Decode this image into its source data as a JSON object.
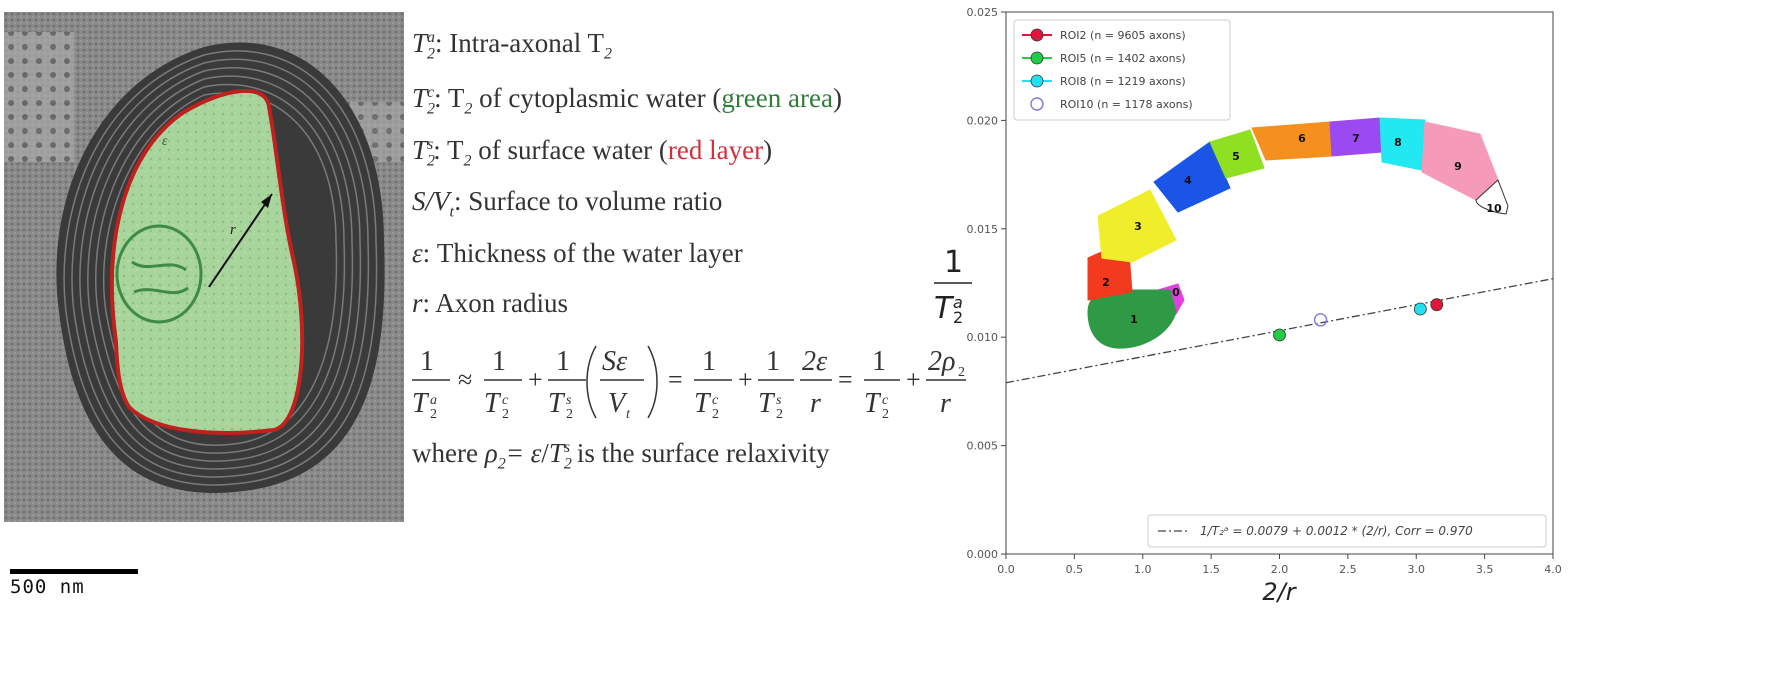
{
  "scale_bar": {
    "label": "500 nm"
  },
  "micrograph": {
    "radius_label": "r",
    "layer_label": "ε"
  },
  "definitions": {
    "t2a": {
      "sym": "T",
      "sub": "2",
      "sup": "a",
      "text": ": Intra-axonal T",
      "tail_sub": "2"
    },
    "t2c": {
      "sym": "T",
      "sub": "2",
      "sup": "c",
      "pre": ": T",
      "pre_sub": "2",
      "mid": " of cytoplasmic water (",
      "colored": "green area",
      "post": ")"
    },
    "t2s": {
      "sym": "T",
      "sub": "2",
      "sup": "s",
      "pre": ": T",
      "pre_sub": "2",
      "mid": " of surface water (",
      "colored": "red layer",
      "post": ")"
    },
    "sv": {
      "sym": "S/V",
      "sub": "t",
      "text": ": Surface to volume ratio"
    },
    "eps": {
      "sym": "ε",
      "text": ": Thickness of the water layer"
    },
    "r": {
      "sym": "r",
      "text": ": Axon radius"
    }
  },
  "equation": {
    "one": "1",
    "T": "T",
    "two": "2",
    "a": "a",
    "c": "c",
    "s": "s",
    "approx": "≈",
    "plus": "+",
    "equals": "=",
    "S_eps": "Sε",
    "V": "V",
    "t": "t",
    "two_eps": "2ε",
    "r": "r",
    "two_rho": "2ρ"
  },
  "where_line": {
    "pre": "where ",
    "rho": "ρ",
    "rho_sub": "2",
    "eq": "= ε",
    "slash": "/",
    "T": "T",
    "T_sub": "2",
    "T_sup": "s",
    "post": "  is the surface relaxivity"
  },
  "chart_data": {
    "type": "scatter",
    "xlabel": "2/r",
    "ylabel": {
      "num": "1",
      "T": "T",
      "sub": "2",
      "sup": "a"
    },
    "xlim": [
      0.0,
      4.0
    ],
    "ylim": [
      0.0,
      0.025
    ],
    "xticks": [
      "0.0",
      "0.5",
      "1.0",
      "1.5",
      "2.0",
      "2.5",
      "3.0",
      "3.5",
      "4.0"
    ],
    "yticks": [
      "0.000",
      "0.005",
      "0.010",
      "0.015",
      "0.020",
      "0.025"
    ],
    "grid": false,
    "legend_position": "top-left",
    "series": [
      {
        "name": "ROI2 (n = 9605 axons)",
        "color": "#e0163a",
        "filled": true,
        "x": 3.15,
        "y": 0.0115
      },
      {
        "name": "ROI5 (n = 1402 axons)",
        "color": "#22cc44",
        "filled": true,
        "x": 2.0,
        "y": 0.0101
      },
      {
        "name": "ROI8 (n = 1219 axons)",
        "color": "#22e0f0",
        "filled": true,
        "x": 3.03,
        "y": 0.0113
      },
      {
        "name": "ROI10 (n = 1178 axons)",
        "color": "#7a7adb",
        "filled": false,
        "x": 2.3,
        "y": 0.0108
      }
    ],
    "fit": {
      "intercept": 0.0079,
      "slope": 0.0012,
      "label": "1/T₂ᵃ = 0.0079 + 0.0012 * (2/r), Corr = 0.970"
    },
    "inset_regions": [
      {
        "label": "0",
        "color": "#e040e0"
      },
      {
        "label": "1",
        "color": "#2e9a45"
      },
      {
        "label": "2",
        "color": "#f23a1e"
      },
      {
        "label": "3",
        "color": "#f0ee2a"
      },
      {
        "label": "4",
        "color": "#1a55e8"
      },
      {
        "label": "5",
        "color": "#8ee020"
      },
      {
        "label": "6",
        "color": "#f5901e"
      },
      {
        "label": "7",
        "color": "#9a4af0"
      },
      {
        "label": "8",
        "color": "#22e8f2"
      },
      {
        "label": "9",
        "color": "#f59ab8"
      },
      {
        "label": "10",
        "color": "#ffffff"
      }
    ]
  }
}
